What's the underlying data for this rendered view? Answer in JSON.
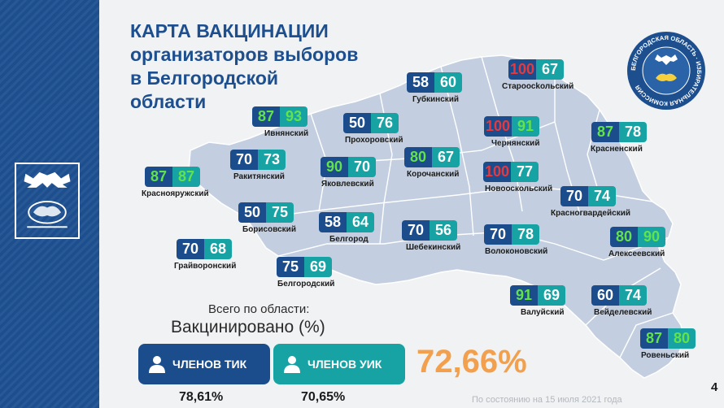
{
  "title": {
    "line1": "КАРТА ВАКЦИНАЦИИ",
    "line2": "организаторов выборов",
    "line3": "в Белгородской",
    "line4": "области"
  },
  "seal": {
    "text": "БЕЛГОРОДСКАЯ ОБЛАСТЬ · ИЗБИРАТЕЛЬНАЯ КОМИССИЯ"
  },
  "regions": [
    {
      "name": "Староосkольский",
      "a": "100",
      "b": "67",
      "a_color": "red",
      "b_color": "white"
    },
    {
      "name": "Губкинский",
      "a": "58",
      "b": "60",
      "a_color": "white",
      "b_color": "white"
    },
    {
      "name": "Ивнянский",
      "a": "87",
      "b": "93",
      "a_color": "green",
      "b_color": "green"
    },
    {
      "name": "Прохоровский",
      "a": "50",
      "b": "76",
      "a_color": "white",
      "b_color": "white"
    },
    {
      "name": "Чернянский",
      "a": "100",
      "b": "91",
      "a_color": "red",
      "b_color": "green"
    },
    {
      "name": "Красненский",
      "a": "87",
      "b": "78",
      "a_color": "green",
      "b_color": "white"
    },
    {
      "name": "Ракитянский",
      "a": "70",
      "b": "73",
      "a_color": "white",
      "b_color": "white"
    },
    {
      "name": "Корочанский",
      "a": "80",
      "b": "67",
      "a_color": "green",
      "b_color": "white"
    },
    {
      "name": "Краснояружский",
      "a": "87",
      "b": "87",
      "a_color": "green",
      "b_color": "green"
    },
    {
      "name": "Яковлевский",
      "a": "90",
      "b": "70",
      "a_color": "green",
      "b_color": "white"
    },
    {
      "name": "Новооскольский",
      "a": "100",
      "b": "77",
      "a_color": "red",
      "b_color": "white"
    },
    {
      "name": "Красногвардейский",
      "a": "70",
      "b": "74",
      "a_color": "white",
      "b_color": "white"
    },
    {
      "name": "Борисовский",
      "a": "50",
      "b": "75",
      "a_color": "white",
      "b_color": "white"
    },
    {
      "name": "Белгород",
      "a": "58",
      "b": "64",
      "a_color": "white",
      "b_color": "white"
    },
    {
      "name": "Шебекинский",
      "a": "70",
      "b": "56",
      "a_color": "white",
      "b_color": "white"
    },
    {
      "name": "Волоконовский",
      "a": "70",
      "b": "78",
      "a_color": "white",
      "b_color": "white"
    },
    {
      "name": "Алексеевский",
      "a": "80",
      "b": "90",
      "a_color": "green",
      "b_color": "green"
    },
    {
      "name": "Грайворонский",
      "a": "70",
      "b": "68",
      "a_color": "white",
      "b_color": "white"
    },
    {
      "name": "Белгородский",
      "a": "75",
      "b": "69",
      "a_color": "white",
      "b_color": "white"
    },
    {
      "name": "Валуйский",
      "a": "91",
      "b": "69",
      "a_color": "green",
      "b_color": "white"
    },
    {
      "name": "Вейделевский",
      "a": "60",
      "b": "74",
      "a_color": "white",
      "b_color": "white"
    },
    {
      "name": "Ровеньский",
      "a": "87",
      "b": "80",
      "a_color": "green",
      "b_color": "green"
    }
  ],
  "totals": {
    "line1": "Всего по области:",
    "line2": "Вакцинировано (%)",
    "tik_label": "ЧЛЕНОВ ТИК",
    "uik_label": "ЧЛЕНОВ УИК",
    "tik_value": "78,61%",
    "uik_value": "70,65%",
    "overall": "72,66%"
  },
  "footer": {
    "note": "По состоянию на 15 июля 2021 года",
    "page": "4"
  },
  "colors": {
    "blue": "#1b4d8c",
    "teal": "#17a3a3",
    "red": "#e8383d",
    "green": "#62e34a",
    "orange": "#f2a04d"
  }
}
